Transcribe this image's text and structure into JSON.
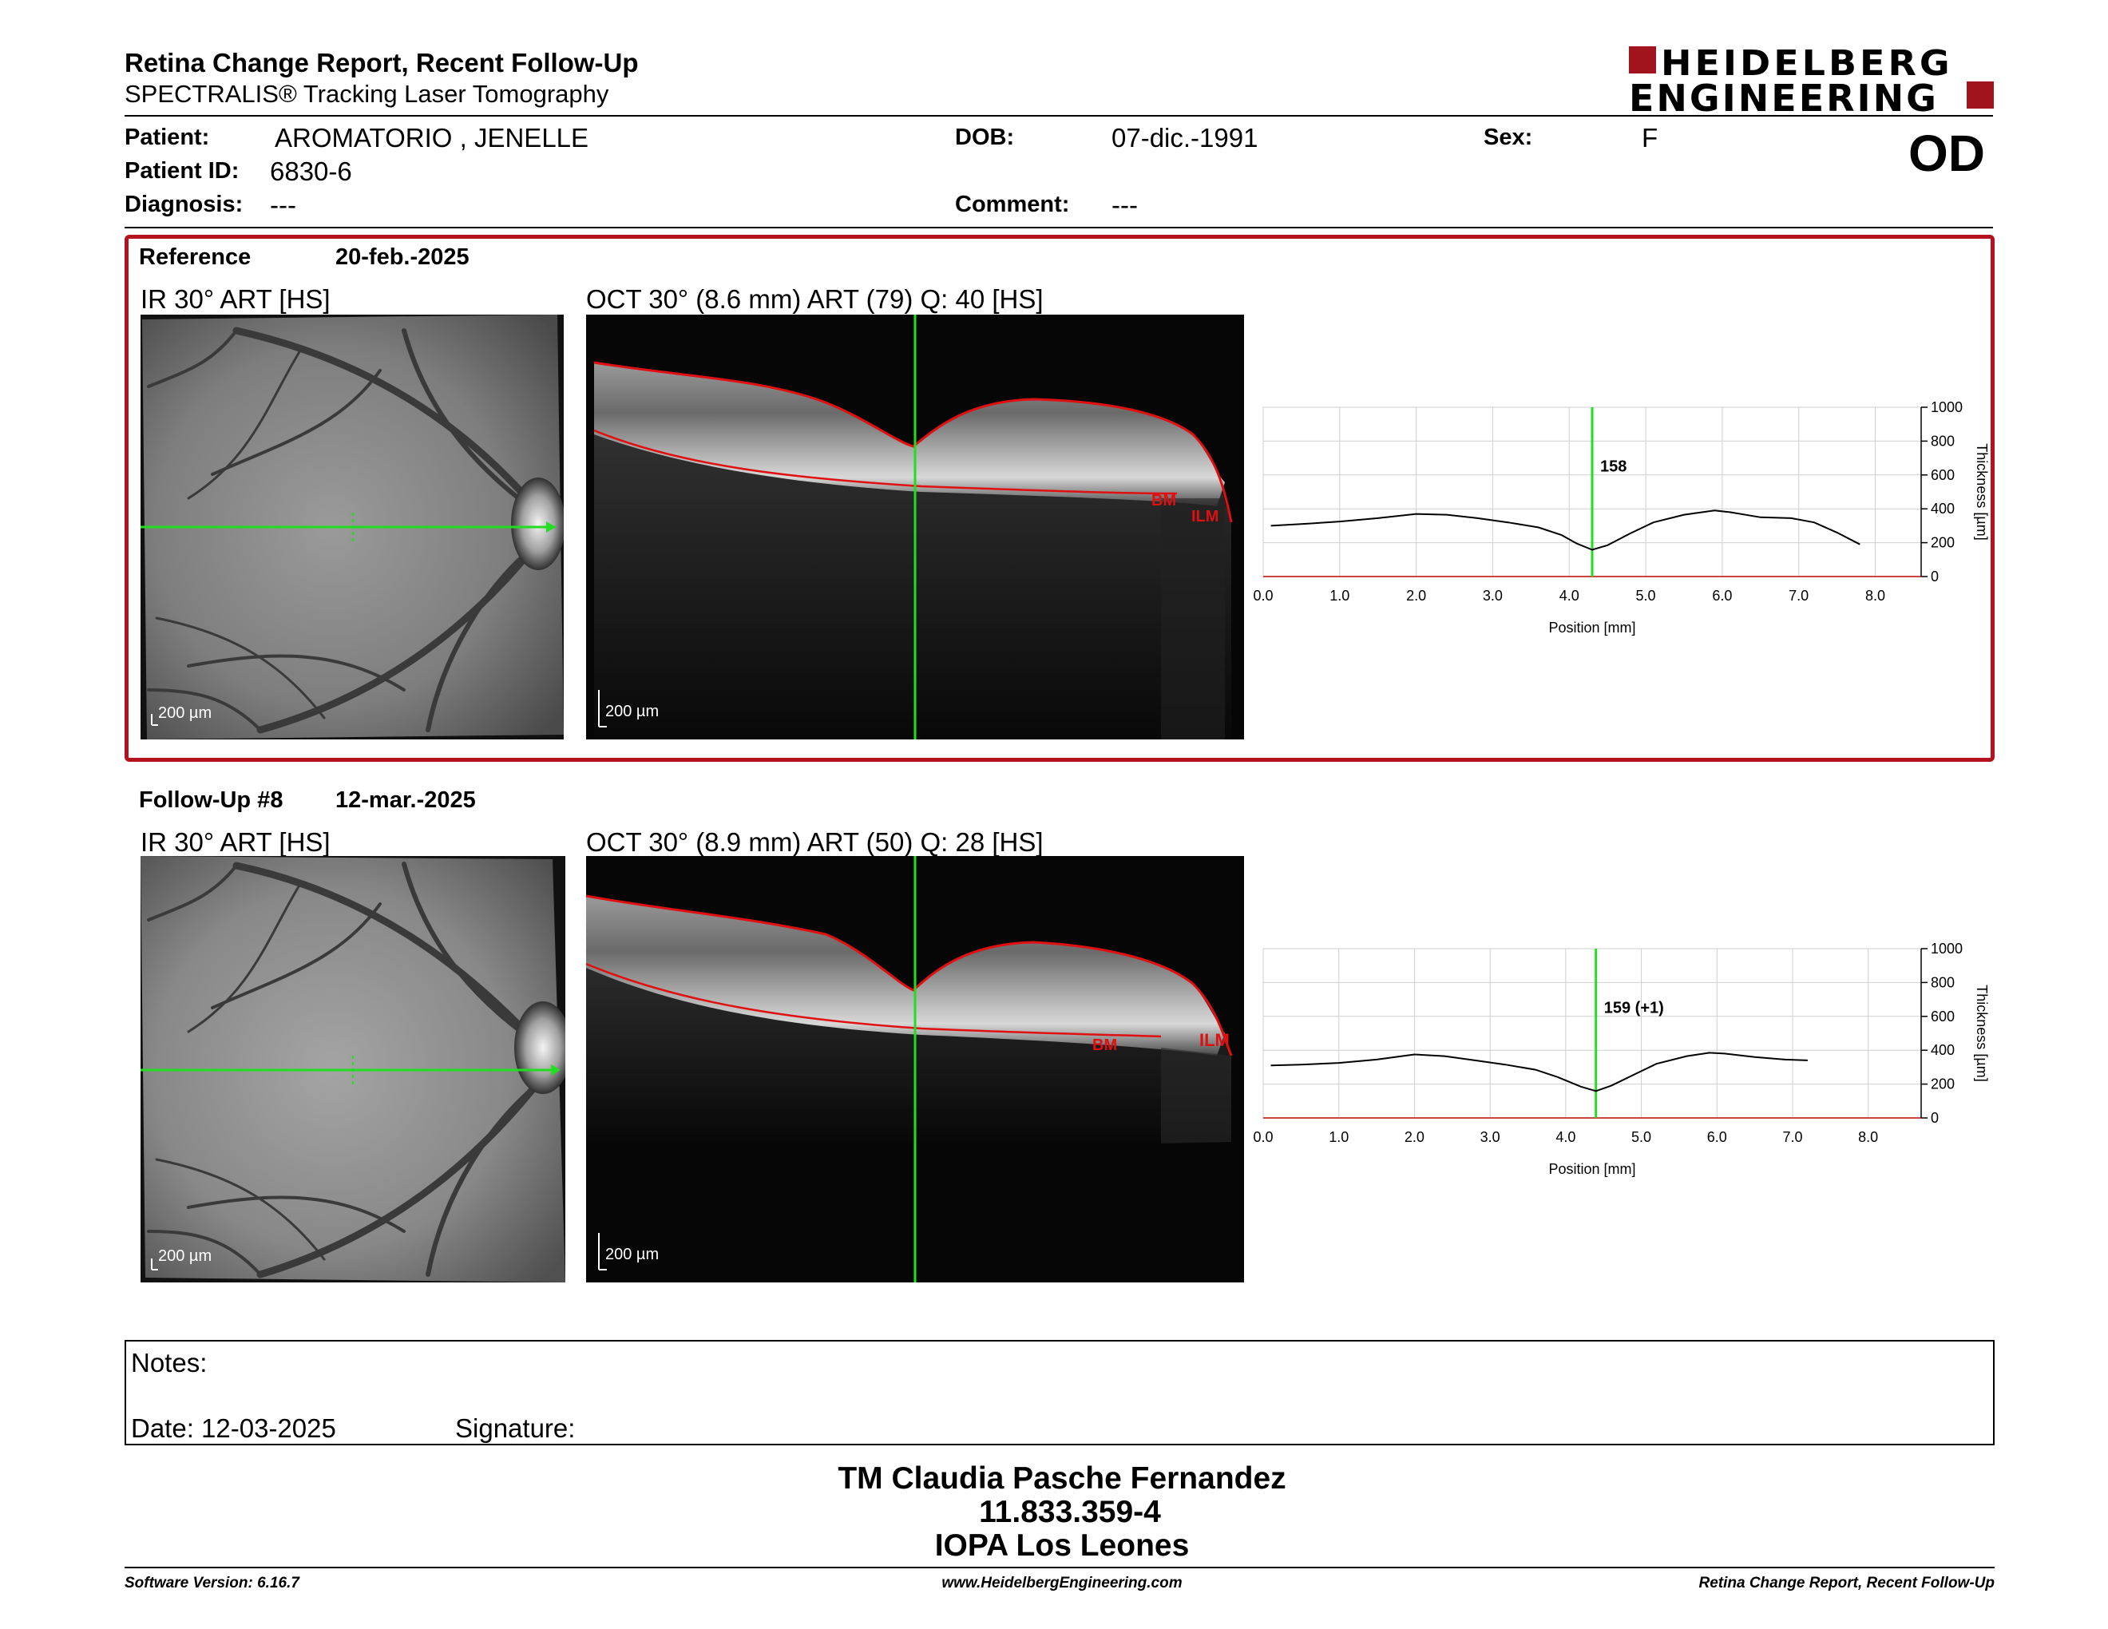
{
  "header": {
    "title": "Retina Change Report, Recent Follow-Up",
    "subtitle": "SPECTRALIS® Tracking Laser Tomography",
    "logo_line1": "HEIDELBERG",
    "logo_line2": "ENGINEERING",
    "eye": "OD"
  },
  "patient": {
    "name_label": "Patient:",
    "name": "AROMATORIO , JENELLE",
    "id_label": "Patient ID:",
    "id": "6830-6",
    "diagnosis_label": "Diagnosis:",
    "diagnosis": "---",
    "dob_label": "DOB:",
    "dob": "07-dic.-1991",
    "comment_label": "Comment:",
    "comment": "---",
    "sex_label": "Sex:",
    "sex": "F"
  },
  "reference": {
    "label": "Reference",
    "date": "20-feb.-2025",
    "ir_title": "IR 30° ART [HS]",
    "oct_title": "OCT 30° (8.6 mm) ART (79) Q: 40 [HS]",
    "scale_ir": "200 µm",
    "scale_oct": "200 µm",
    "label_bm": "BM",
    "label_ilm": "ILM"
  },
  "followup": {
    "label": "Follow-Up #8",
    "date": "12-mar.-2025",
    "ir_title": "IR 30° ART [HS]",
    "oct_title": "OCT 30° (8.9 mm) ART (50) Q: 28 [HS]",
    "scale_ir": "200 µm",
    "scale_oct": "200 µm",
    "label_bm": "BM",
    "label_ilm": "ILM"
  },
  "notes": {
    "label": "Notes:",
    "date_label": "Date: 12-03-2025",
    "signature_label": "Signature:"
  },
  "stamp": {
    "line1": "TM Claudia Pasche Fernandez",
    "line2": "11.833.359-4",
    "line3": "IOPA Los Leones"
  },
  "footer": {
    "left": "Software Version: 6.16.7",
    "center": "www.HeidelbergEngineering.com",
    "right": "Retina Change Report, Recent Follow-Up"
  },
  "colors": {
    "accent_red": "#a1141e",
    "scan_green": "#22dd22",
    "segmentation_red": "#e01010"
  },
  "chart_data": [
    {
      "type": "line",
      "title": "",
      "xlabel": "Position [mm]",
      "ylabel": "Thickness [µm]",
      "xlim": [
        0,
        8.6
      ],
      "ylim": [
        0,
        1000
      ],
      "xticks": [
        "0.0",
        "1.0",
        "2.0",
        "3.0",
        "4.0",
        "5.0",
        "6.0",
        "7.0",
        "8.0"
      ],
      "yticks": [
        "0",
        "200",
        "400",
        "600",
        "800",
        "1000"
      ],
      "grid": true,
      "marker_x": 4.3,
      "marker_label": "158",
      "series": [
        {
          "x": [
            0.1,
            0.5,
            1.0,
            1.5,
            2.0,
            2.4,
            2.8,
            3.2,
            3.6,
            3.9,
            4.1,
            4.3,
            4.5,
            4.8,
            5.1,
            5.5,
            5.9,
            6.1,
            6.5,
            6.9,
            7.2,
            7.5,
            7.8
          ],
          "values": [
            300,
            310,
            325,
            345,
            370,
            365,
            345,
            320,
            290,
            245,
            195,
            158,
            185,
            255,
            320,
            365,
            390,
            380,
            350,
            345,
            320,
            260,
            190
          ]
        }
      ]
    },
    {
      "type": "line",
      "title": "",
      "xlabel": "Position [mm]",
      "ylabel": "Thickness [µm]",
      "xlim": [
        0,
        8.7
      ],
      "ylim": [
        0,
        1000
      ],
      "xticks": [
        "0.0",
        "1.0",
        "2.0",
        "3.0",
        "4.0",
        "5.0",
        "6.0",
        "7.0",
        "8.0"
      ],
      "yticks": [
        "0",
        "200",
        "400",
        "600",
        "800",
        "1000"
      ],
      "grid": true,
      "marker_x": 4.4,
      "marker_label": "159 (+1)",
      "series": [
        {
          "x": [
            0.1,
            0.5,
            1.0,
            1.5,
            2.0,
            2.4,
            2.8,
            3.2,
            3.6,
            3.9,
            4.2,
            4.4,
            4.6,
            4.9,
            5.2,
            5.6,
            5.9,
            6.1,
            6.5,
            6.9,
            7.2
          ],
          "values": [
            310,
            315,
            325,
            345,
            375,
            365,
            340,
            315,
            285,
            240,
            185,
            159,
            190,
            255,
            320,
            365,
            385,
            380,
            360,
            345,
            340
          ]
        }
      ]
    }
  ]
}
